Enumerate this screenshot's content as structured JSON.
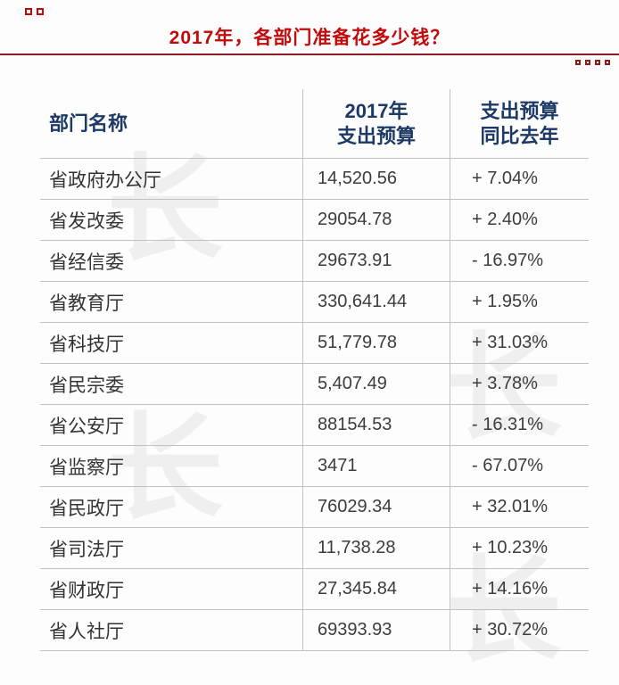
{
  "banner": {
    "title": "2017年，各部门准备花多少钱？",
    "title_color": "#c20a0a",
    "rule_color": "#8e1b1b"
  },
  "watermark_glyph": "长",
  "table_header": {
    "col1": "部门名称",
    "col2": "2017年\n支出预算",
    "col3": "支出预算\n同比去年",
    "header_color": "#1d3a66"
  },
  "chart_data": {
    "type": "table",
    "title": "2017年，各部门准备花多少钱？",
    "columns": [
      "部门名称",
      "2017年支出预算",
      "支出预算同比去年"
    ],
    "rows": [
      [
        "省政府办公厅",
        "14,520.56",
        "+ 7.04%"
      ],
      [
        "省发改委",
        "29054.78",
        "+ 2.40%"
      ],
      [
        "省经信委",
        "29673.91",
        "- 16.97%"
      ],
      [
        "省教育厅",
        "330,641.44",
        "+ 1.95%"
      ],
      [
        "省科技厅",
        "51,779.78",
        "+ 31.03%"
      ],
      [
        "省民宗委",
        "5,407.49",
        "+ 3.78%"
      ],
      [
        "省公安厅",
        "88154.53",
        "- 16.31%"
      ],
      [
        "省监察厅",
        "3471",
        "- 67.07%"
      ],
      [
        "省民政厅",
        "76029.34",
        "+ 32.01%"
      ],
      [
        "省司法厅",
        "11,738.28",
        "+ 10.23%"
      ],
      [
        "省财政厅",
        "27,345.84",
        "+ 14.16%"
      ],
      [
        "省人社厅",
        "69393.93",
        "+ 30.72%"
      ]
    ]
  }
}
